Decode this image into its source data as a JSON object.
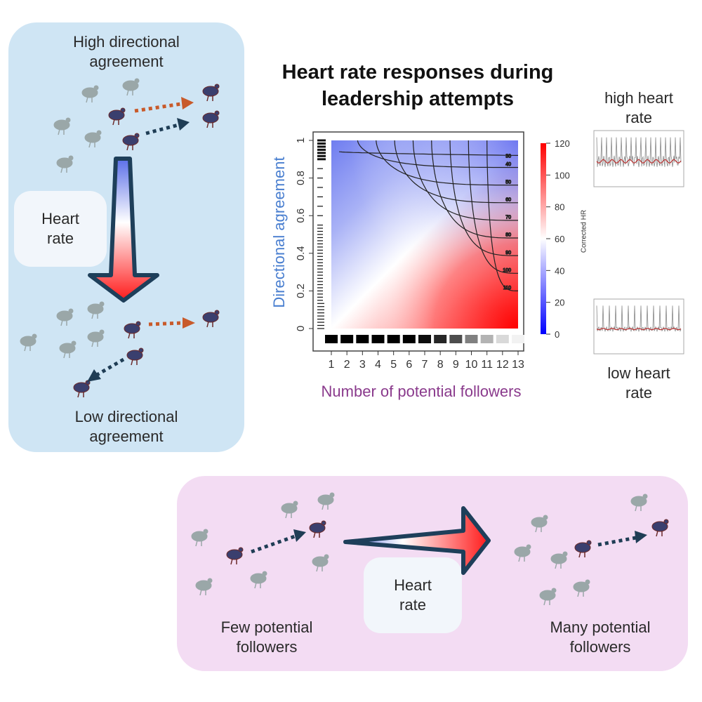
{
  "labels": {
    "high_agreement": "High directional agreement",
    "low_agreement": "Low directional agreement",
    "heart_rate_left": "Heart rate",
    "heart_rate_bottom": "Heart rate",
    "few_followers": "Few potential followers",
    "many_followers": "Many potential followers",
    "high_heart_rate": "high heart rate",
    "low_heart_rate": "low heart rate"
  },
  "colors": {
    "low": "#0000ff",
    "mid": "#ffffff",
    "high": "#ff0000",
    "panel_blue": "#cfe5f4",
    "panel_pink": "#f3dcf3",
    "orange_arrow": "#c85a2a",
    "navy_arrow": "#1f3d55"
  },
  "icons": {
    "bird": "guineafowl-icon",
    "arrow": "dotted-arrow-icon"
  },
  "chart_data": {
    "type": "heatmap",
    "title": "Heart rate responses during leadership attempts",
    "xlabel": "Number of potential followers",
    "ylabel": "Directional agreement",
    "x_ticks": [
      1,
      2,
      3,
      4,
      5,
      6,
      7,
      8,
      9,
      10,
      11,
      12,
      13
    ],
    "y_ticks": [
      0,
      0.2,
      0.4,
      0.6,
      0.8,
      1
    ],
    "xlim": [
      1,
      13
    ],
    "ylim": [
      0,
      1
    ],
    "colorbar": {
      "label": "Corrected HR",
      "ticks": [
        0,
        20,
        40,
        60,
        80,
        100,
        120
      ],
      "range": [
        0,
        120
      ]
    },
    "contour_levels": [
      30,
      40,
      50,
      60,
      70,
      80,
      90,
      100,
      110
    ],
    "rug_x_weights": [
      1,
      1,
      1,
      1,
      1,
      1,
      0.95,
      0.85,
      0.7,
      0.5,
      0.3,
      0.15,
      0.05
    ],
    "rug_y_density": "dense near 0 and 1"
  }
}
